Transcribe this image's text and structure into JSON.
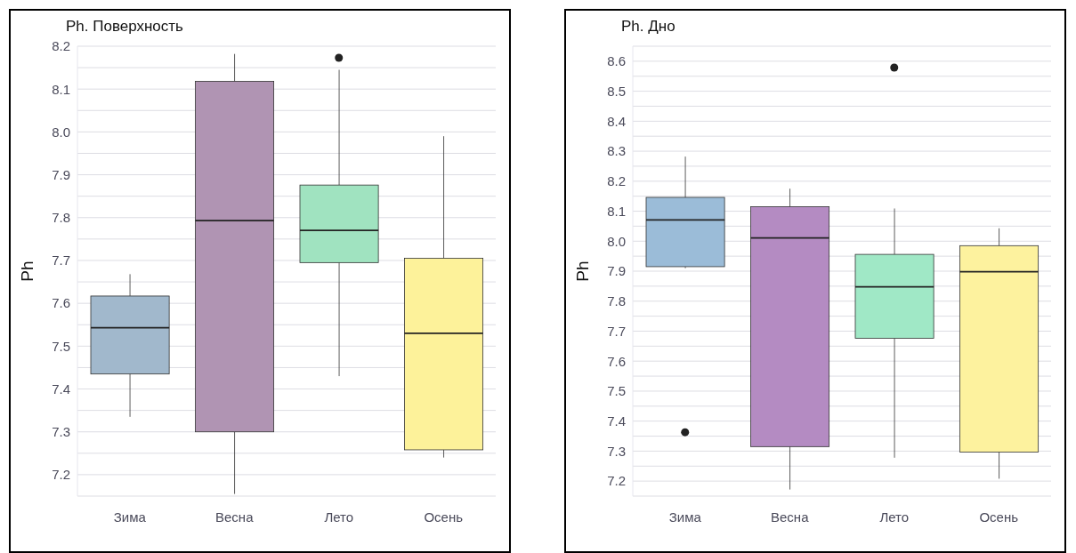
{
  "chart_data": [
    {
      "type": "box",
      "title": "Ph. Поверхность",
      "ylabel": "Ph",
      "categories": [
        "Зима",
        "Весна",
        "Лето",
        "Осень"
      ],
      "colors": [
        "#a1b8cc",
        "#b094b3",
        "#a0e3c0",
        "#fdf29a"
      ],
      "boxes": [
        {
          "low": 7.335,
          "q1": 7.435,
          "median": 7.543,
          "q3": 7.617,
          "high": 7.668
        },
        {
          "low": 7.155,
          "q1": 7.3,
          "median": 7.793,
          "q3": 8.118,
          "high": 8.182
        },
        {
          "low": 7.43,
          "q1": 7.695,
          "median": 7.77,
          "q3": 7.876,
          "high": 8.145,
          "outliers": [
            8.173
          ]
        },
        {
          "low": 7.24,
          "q1": 7.258,
          "median": 7.53,
          "q3": 7.705,
          "high": 7.99
        }
      ],
      "ylim": [
        7.15,
        8.2
      ],
      "yticks": [
        7.2,
        7.3,
        7.4,
        7.5,
        7.6,
        7.7,
        7.8,
        7.9,
        {
          "value": 8,
          "label": "8.0"
        },
        8.1,
        8.2
      ],
      "grid": "y"
    },
    {
      "type": "box",
      "title": "Ph. Дно",
      "ylabel": "Ph",
      "categories": [
        "Зима",
        "Весна",
        "Лето",
        "Осень"
      ],
      "colors": [
        "#9bbcd8",
        "#b48bc2",
        "#a0e8c6",
        "#fdf29e"
      ],
      "boxes": [
        {
          "low": 7.91,
          "q1": 7.915,
          "median": 8.071,
          "q3": 8.146,
          "high": 8.282,
          "outliers": [
            7.363
          ]
        },
        {
          "low": 7.172,
          "q1": 7.315,
          "median": 8.011,
          "q3": 8.115,
          "high": 8.175
        },
        {
          "low": 7.278,
          "q1": 7.676,
          "median": 7.848,
          "q3": 7.956,
          "high": 8.109,
          "outliers": [
            8.579
          ]
        },
        {
          "low": 7.208,
          "q1": 7.297,
          "median": 7.898,
          "q3": 7.985,
          "high": 8.043
        }
      ],
      "ylim": [
        7.15,
        8.65
      ],
      "yticks": [
        7.2,
        7.3,
        7.4,
        7.5,
        7.6,
        7.7,
        7.8,
        7.9,
        {
          "value": 8,
          "label": "8.0"
        },
        8.1,
        8.2,
        8.3,
        8.4,
        8.5,
        8.6
      ],
      "grid": "y"
    }
  ]
}
